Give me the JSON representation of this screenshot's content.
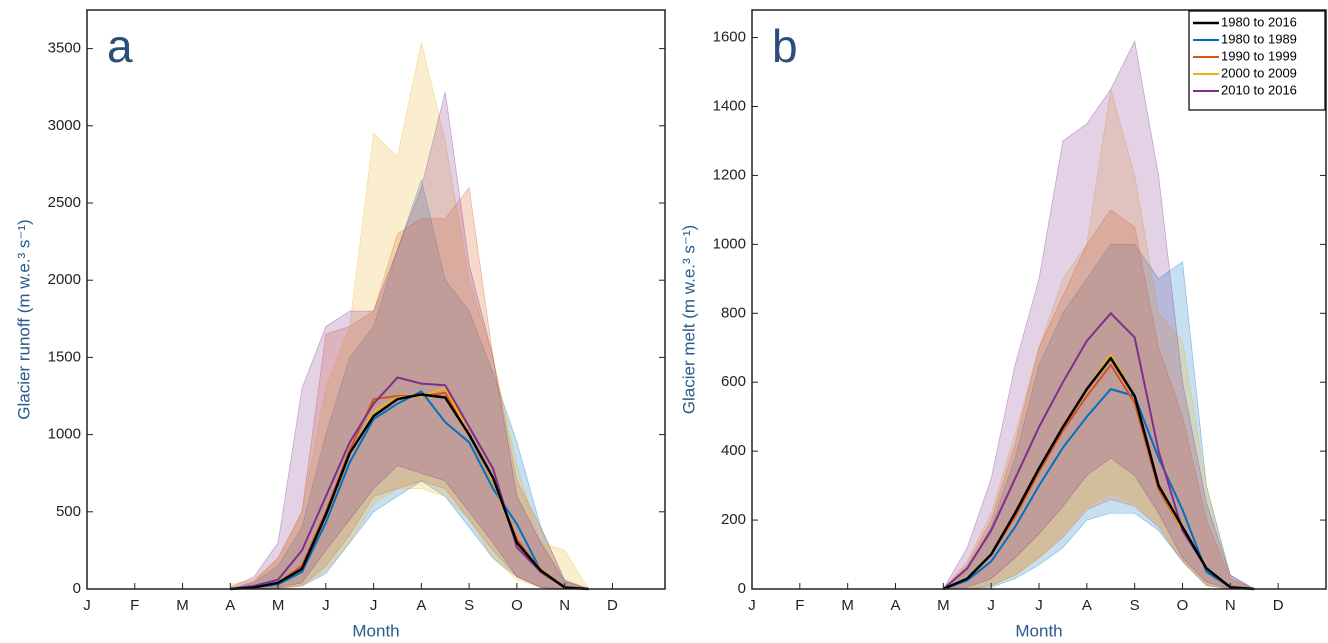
{
  "chart_data": [
    {
      "type": "line",
      "panel_label": "a",
      "x_label": "Month",
      "y_label": "Glacier runoff (m w.e.³ s⁻¹)",
      "x": [
        3,
        3.5,
        4,
        4.5,
        5,
        5.5,
        6,
        6.5,
        7,
        7.5,
        8,
        8.5,
        9,
        9.5,
        10,
        10.5
      ],
      "xlim": [
        0,
        12.1
      ],
      "xticks": [
        {
          "value": 0,
          "label": "J"
        },
        {
          "value": 1,
          "label": "F"
        },
        {
          "value": 2,
          "label": "M"
        },
        {
          "value": 3,
          "label": "A"
        },
        {
          "value": 4,
          "label": "M"
        },
        {
          "value": 5,
          "label": "J"
        },
        {
          "value": 6,
          "label": "J"
        },
        {
          "value": 7,
          "label": "A"
        },
        {
          "value": 8,
          "label": "S"
        },
        {
          "value": 9,
          "label": "O"
        },
        {
          "value": 10,
          "label": "N"
        },
        {
          "value": 11,
          "label": "D"
        }
      ],
      "ylim": [
        0,
        3750
      ],
      "yticks": [
        0,
        500,
        1000,
        1500,
        2000,
        2500,
        3000,
        3500
      ],
      "legend": false,
      "series": [
        {
          "name": "1980 to 2016",
          "color": "#000000",
          "values": [
            0,
            10,
            40,
            130,
            480,
            880,
            1120,
            1230,
            1260,
            1240,
            1000,
            720,
            300,
            120,
            10,
            0
          ]
        },
        {
          "name": "1980 to 1989",
          "color": "#0072bd",
          "values": [
            0,
            10,
            30,
            110,
            430,
            820,
            1100,
            1200,
            1280,
            1080,
            950,
            650,
            420,
            120,
            10,
            0
          ],
          "lower": [
            0,
            0,
            5,
            20,
            100,
            300,
            500,
            600,
            700,
            600,
            400,
            200,
            80,
            10,
            0,
            0
          ],
          "upper": [
            0,
            40,
            150,
            400,
            1000,
            1500,
            1700,
            2200,
            2650,
            2000,
            1800,
            1400,
            950,
            400,
            60,
            0
          ]
        },
        {
          "name": "1990 to 1999",
          "color": "#d95319",
          "values": [
            0,
            10,
            40,
            150,
            500,
            900,
            1230,
            1250,
            1250,
            1270,
            1000,
            700,
            320,
            120,
            10,
            0
          ],
          "lower": [
            0,
            0,
            5,
            20,
            150,
            350,
            600,
            650,
            700,
            650,
            450,
            250,
            80,
            10,
            0,
            0
          ],
          "upper": [
            0,
            50,
            200,
            500,
            1650,
            1700,
            1800,
            2300,
            2400,
            2400,
            2600,
            1500,
            700,
            400,
            50,
            0
          ]
        },
        {
          "name": "2000 to 2009",
          "color": "#edb120",
          "values": [
            0,
            10,
            40,
            130,
            480,
            870,
            1150,
            1240,
            1250,
            1300,
            1010,
            700,
            300,
            130,
            10,
            0
          ],
          "lower": [
            0,
            0,
            5,
            20,
            120,
            300,
            550,
            650,
            650,
            600,
            450,
            200,
            60,
            10,
            0,
            0
          ],
          "upper": [
            30,
            60,
            200,
            500,
            1300,
            1700,
            2950,
            2800,
            3540,
            2900,
            2000,
            1500,
            800,
            300,
            250,
            0
          ]
        },
        {
          "name": "2010 to 2016",
          "color": "#7e2f8e",
          "values": [
            0,
            20,
            60,
            250,
            600,
            950,
            1200,
            1370,
            1330,
            1320,
            1050,
            780,
            270,
            110,
            10,
            0
          ],
          "lower": [
            0,
            0,
            10,
            40,
            250,
            450,
            650,
            800,
            750,
            700,
            500,
            300,
            80,
            10,
            0,
            0
          ],
          "upper": [
            10,
            80,
            300,
            1300,
            1700,
            1800,
            1800,
            2200,
            2600,
            3220,
            2100,
            1500,
            600,
            300,
            50,
            0
          ]
        }
      ]
    },
    {
      "type": "line",
      "panel_label": "b",
      "x_label": "Month",
      "y_label": "Glacier melt (m w.e.³ s⁻¹)",
      "x": [
        4,
        4.5,
        5,
        5.5,
        6,
        6.5,
        7,
        7.5,
        8,
        8.5,
        9,
        9.5,
        10,
        10.5
      ],
      "xlim": [
        0,
        12.0
      ],
      "xticks": [
        {
          "value": 0,
          "label": "J"
        },
        {
          "value": 1,
          "label": "F"
        },
        {
          "value": 2,
          "label": "M"
        },
        {
          "value": 3,
          "label": "A"
        },
        {
          "value": 4,
          "label": "M"
        },
        {
          "value": 5,
          "label": "J"
        },
        {
          "value": 6,
          "label": "J"
        },
        {
          "value": 7,
          "label": "A"
        },
        {
          "value": 8,
          "label": "S"
        },
        {
          "value": 9,
          "label": "O"
        },
        {
          "value": 10,
          "label": "N"
        },
        {
          "value": 11,
          "label": "D"
        }
      ],
      "ylim": [
        0,
        1680
      ],
      "yticks": [
        0,
        200,
        400,
        600,
        800,
        1000,
        1200,
        1400,
        1600
      ],
      "legend": "upper right",
      "series": [
        {
          "name": "1980 to 2016",
          "color": "#000000",
          "values": [
            0,
            30,
            100,
            220,
            350,
            470,
            580,
            670,
            560,
            300,
            180,
            60,
            5,
            0
          ]
        },
        {
          "name": "1980 to 1989",
          "color": "#0072bd",
          "values": [
            0,
            25,
            80,
            180,
            300,
            410,
            500,
            580,
            560,
            380,
            230,
            50,
            5,
            0
          ],
          "lower": [
            0,
            0,
            5,
            30,
            70,
            120,
            200,
            220,
            220,
            170,
            80,
            10,
            0,
            0
          ],
          "upper": [
            0,
            60,
            180,
            380,
            650,
            800,
            900,
            1000,
            1000,
            900,
            950,
            300,
            40,
            0
          ]
        },
        {
          "name": "1990 to 1999",
          "color": "#d95319",
          "values": [
            0,
            30,
            100,
            210,
            340,
            460,
            560,
            650,
            540,
            290,
            170,
            60,
            5,
            0
          ],
          "lower": [
            0,
            0,
            10,
            40,
            90,
            150,
            230,
            260,
            240,
            180,
            80,
            10,
            0,
            0
          ],
          "upper": [
            0,
            70,
            200,
            420,
            700,
            850,
            1000,
            1100,
            1050,
            700,
            500,
            200,
            30,
            0
          ]
        },
        {
          "name": "2000 to 2009",
          "color": "#edb120",
          "values": [
            0,
            30,
            100,
            220,
            350,
            470,
            580,
            680,
            560,
            300,
            170,
            60,
            5,
            0
          ],
          "lower": [
            0,
            0,
            10,
            40,
            90,
            160,
            240,
            280,
            250,
            190,
            80,
            10,
            0,
            0
          ],
          "upper": [
            0,
            80,
            220,
            450,
            700,
            900,
            1000,
            1450,
            1200,
            800,
            720,
            300,
            30,
            0
          ]
        },
        {
          "name": "2010 to 2016",
          "color": "#7e2f8e",
          "values": [
            0,
            60,
            170,
            320,
            470,
            600,
            720,
            800,
            730,
            400,
            170,
            60,
            5,
            0
          ],
          "lower": [
            0,
            5,
            30,
            90,
            160,
            240,
            330,
            380,
            330,
            220,
            90,
            20,
            0,
            0
          ],
          "upper": [
            0,
            120,
            320,
            650,
            900,
            1300,
            1350,
            1450,
            1590,
            1200,
            600,
            250,
            40,
            0
          ]
        }
      ]
    }
  ]
}
